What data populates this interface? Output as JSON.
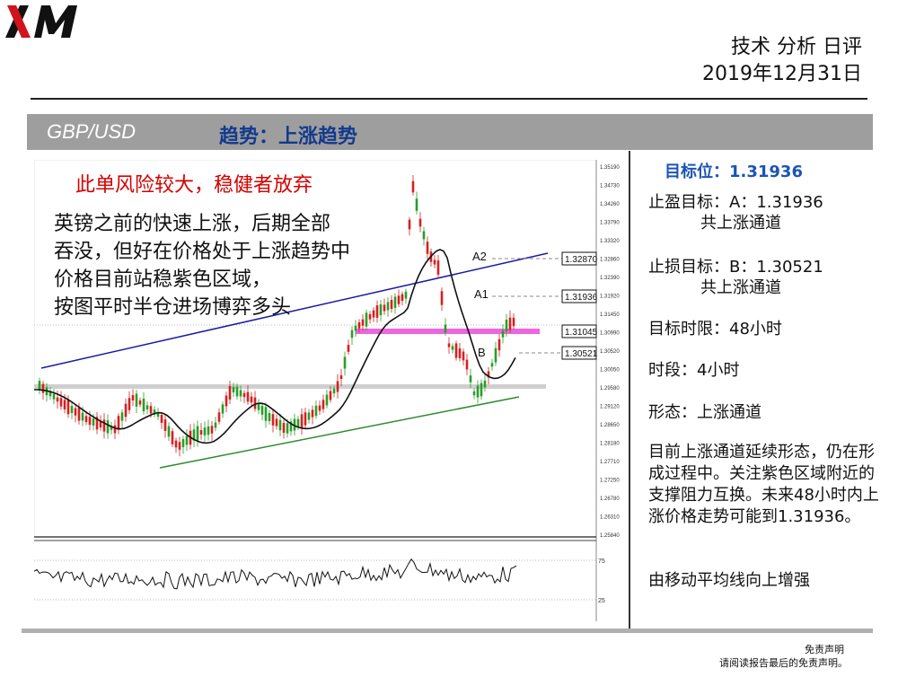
{
  "header": {
    "logo_text": "XM",
    "report_type": "技术 分析 日评",
    "date": "2019年12月31日"
  },
  "banner": {
    "pair": "GBP/USD",
    "trend": "趋势：上涨趋势"
  },
  "chart": {
    "warning": "此单风险较大，稳健者放弃",
    "notes": [
      "英镑之前的快速上涨，后期全部",
      "吞没，但好在价格处于上涨趋势中",
      "价格目前站稳紫色区域，",
      "按图平时半仓进场博弈多头"
    ],
    "levels": {
      "a2": {
        "label": "A2",
        "value": "1.32870"
      },
      "a1": {
        "label": "A1",
        "value": "1.31936"
      },
      "current": {
        "value": "1.31045"
      },
      "b": {
        "label": "B",
        "value": "1.30521"
      }
    },
    "axis_ticks": [
      "1.35190",
      "1.34730",
      "1.34260",
      "1.33790",
      "1.33320",
      "1.32860",
      "1.32390",
      "1.31920",
      "1.31450",
      "1.30990",
      "1.30520",
      "1.30050",
      "1.29580",
      "1.29120",
      "1.28650",
      "1.28180",
      "1.27710",
      "1.27250",
      "1.26780",
      "1.26310",
      "1.25840"
    ],
    "oscillator_ticks": [
      "75",
      "25"
    ],
    "colors": {
      "upper_channel": "#1a1aa6",
      "lower_channel": "#2e8b2e",
      "purple_zone": "#ee66dd",
      "grey_zone": "#c8c8c8",
      "bull_candle": "#2a9d2a",
      "bear_candle": "#d62020",
      "ma": "#111111"
    }
  },
  "side": {
    "target": "目标位：1.31936",
    "take_profit": "止盈目标：A：1.31936",
    "take_profit_note": "共上涨通道",
    "stop_loss": "止损目标：B：1.30521",
    "stop_loss_note": "共上涨通道",
    "time_limit": "目标时限：48小时",
    "period": "时段：4小时",
    "pattern": "形态：上涨通道",
    "summary": "目前上涨通道延续形态，仍在形成过程中。关注紫色区域附近的支撑阻力互换。未来48小时内上涨价格走势可能到1.31936。",
    "ma_note": "由移动平均线向上增强"
  },
  "footer": {
    "disclaimer_title": "免责声明",
    "disclaimer_text": "请阅读报告最后的免责声明。"
  }
}
